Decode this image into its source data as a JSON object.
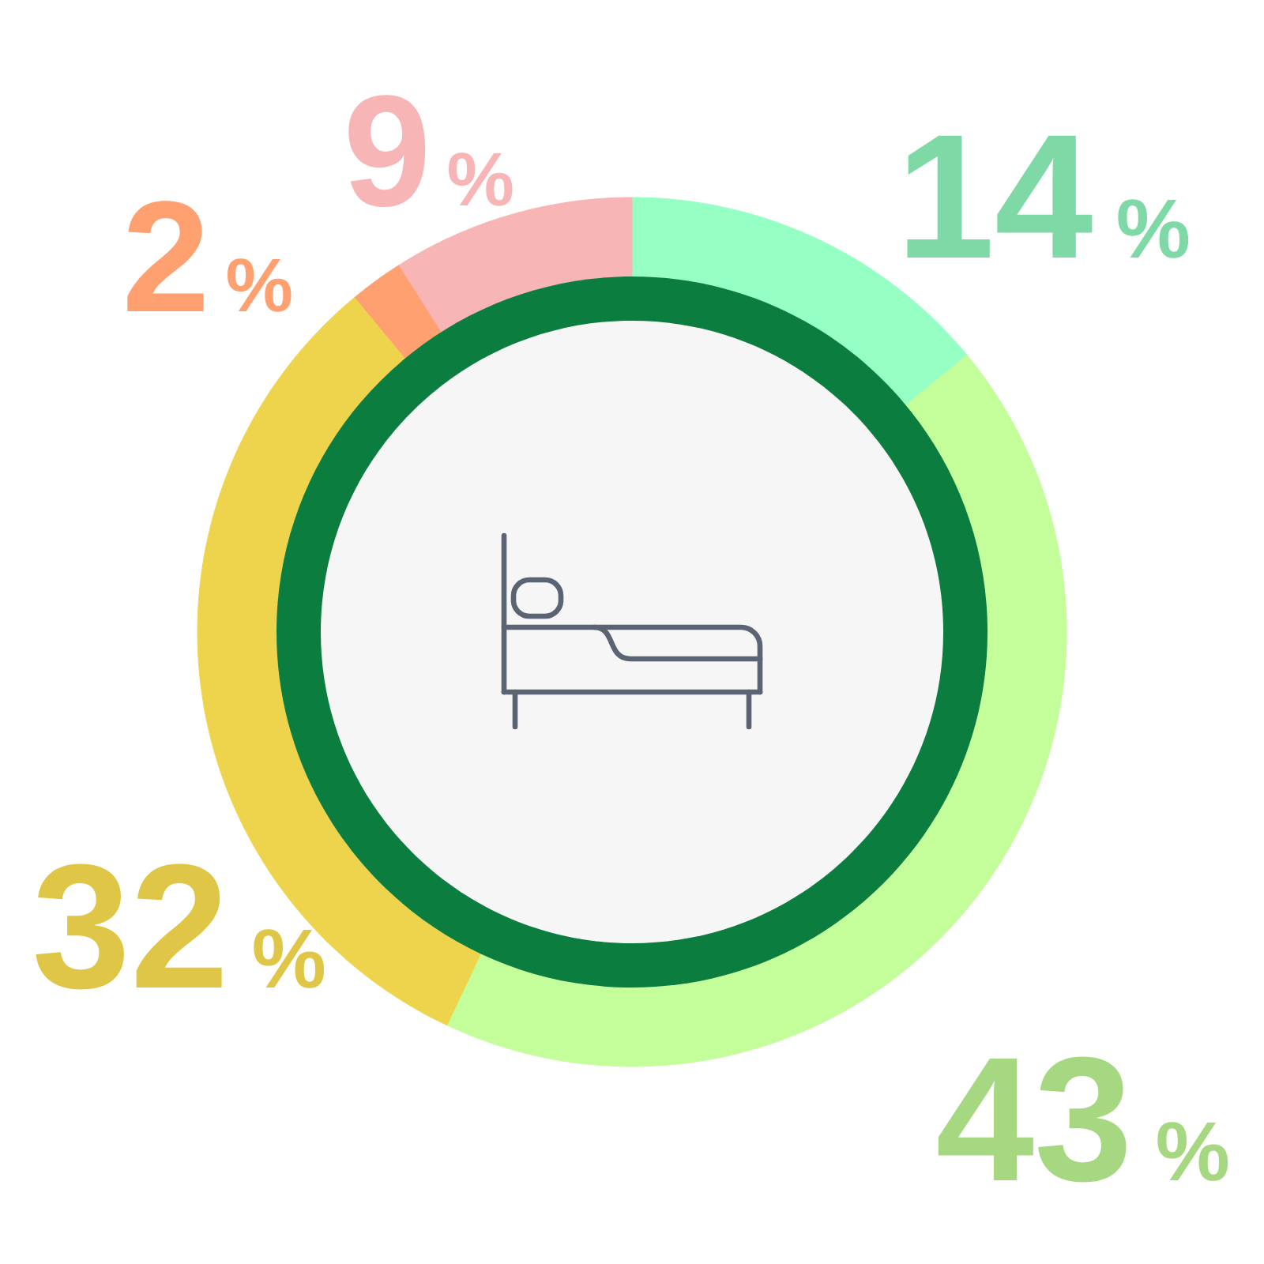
{
  "chart_data": {
    "type": "donut",
    "categories": [
      null,
      null,
      null,
      null,
      null
    ],
    "values": [
      14,
      43,
      32,
      2,
      9
    ],
    "colors": [
      "#96ffc4",
      "#c4fe9b",
      "#eed44d",
      "#fea06f",
      "#f8b5b5"
    ],
    "value_labels": [
      "14%",
      "43%",
      "32%",
      "2%",
      "9%"
    ]
  }
}
